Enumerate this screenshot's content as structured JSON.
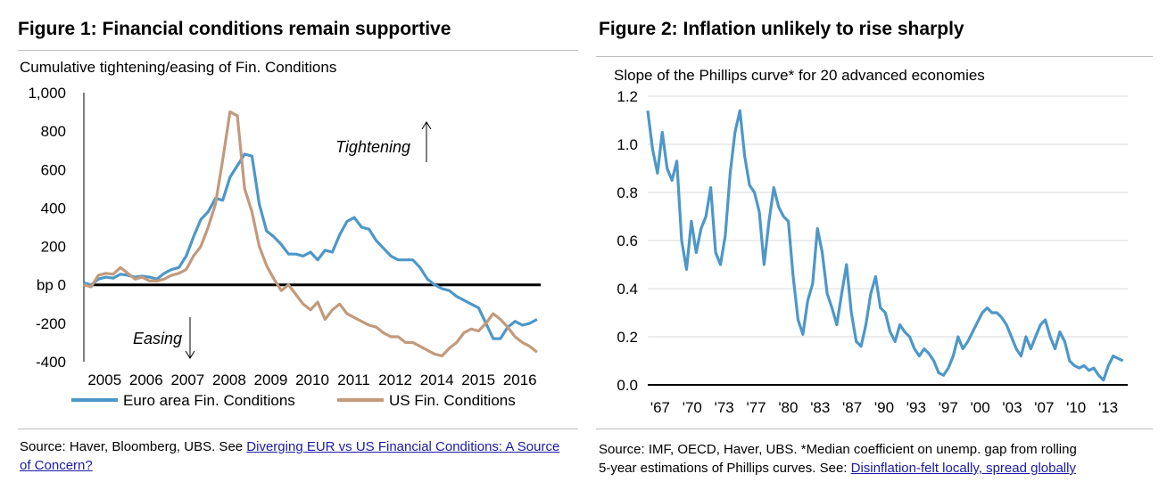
{
  "figure1": {
    "title": "Figure 1: Financial conditions remain supportive",
    "source_prefix": "Source:  Haver, Bloomberg, UBS. See ",
    "source_link": "Diverging EUR vs US Financial Conditions: A Source of Concern?",
    "chart_data": {
      "type": "line",
      "title": "Figure 1: Financial conditions remain supportive",
      "subtitle": "Cumulative tightening/easing of Fin. Conditions",
      "xlabel": "",
      "ylabel": "bp",
      "ylim": [
        -400,
        1000
      ],
      "xlim": [
        2005,
        2017.5
      ],
      "y_ticks": [
        1000,
        800,
        600,
        400,
        200,
        0,
        -200,
        -400
      ],
      "y_tick_labels": [
        "1,000",
        "800",
        "600",
        "400",
        "200",
        "bp 0",
        "-200",
        "-400"
      ],
      "x_tick_labels": [
        "2005",
        "2006",
        "2007",
        "2008",
        "2009",
        "2010",
        "2011",
        "2012",
        "2014",
        "2015",
        "2016"
      ],
      "grid": false,
      "legend_position": "bottom",
      "annotations": [
        {
          "text": "Tightening",
          "arrow": "up"
        },
        {
          "text": "Easing",
          "arrow": "down"
        }
      ],
      "colors": {
        "Euro area Fin. Conditions": "#4d97c9",
        "US Fin. Conditions": "#c29a7c",
        "zero_line": "#000000"
      },
      "series": [
        {
          "name": "Euro area Fin. Conditions",
          "x": [
            2005.0,
            2005.2,
            2005.4,
            2005.6,
            2005.8,
            2006.0,
            2006.2,
            2006.4,
            2006.6,
            2006.8,
            2007.0,
            2007.2,
            2007.4,
            2007.6,
            2007.8,
            2008.0,
            2008.2,
            2008.4,
            2008.6,
            2008.8,
            2009.0,
            2009.2,
            2009.4,
            2009.6,
            2009.8,
            2010.0,
            2010.2,
            2010.4,
            2010.6,
            2010.8,
            2011.0,
            2011.2,
            2011.4,
            2011.6,
            2011.8,
            2012.0,
            2012.2,
            2012.4,
            2012.6,
            2012.8,
            2013.0,
            2013.2,
            2013.4,
            2013.6,
            2013.8,
            2014.0,
            2014.2,
            2014.4,
            2014.6,
            2014.8,
            2015.0,
            2015.2,
            2015.4,
            2015.6,
            2015.8,
            2016.0,
            2016.2,
            2016.4,
            2016.6,
            2016.8,
            2017.0,
            2017.2,
            2017.4
          ],
          "values": [
            10,
            0,
            30,
            40,
            35,
            55,
            50,
            40,
            45,
            40,
            30,
            60,
            80,
            90,
            150,
            250,
            340,
            380,
            450,
            440,
            560,
            620,
            680,
            670,
            420,
            280,
            250,
            210,
            160,
            160,
            150,
            170,
            130,
            180,
            170,
            260,
            330,
            350,
            300,
            290,
            230,
            190,
            150,
            130,
            130,
            130,
            90,
            30,
            0,
            -20,
            -30,
            -60,
            -80,
            -100,
            -120,
            -200,
            -280,
            -280,
            -220,
            -190,
            -210,
            -200,
            -180
          ]
        },
        {
          "name": "US Fin. Conditions",
          "x": [
            2005.0,
            2005.2,
            2005.4,
            2005.6,
            2005.8,
            2006.0,
            2006.2,
            2006.4,
            2006.6,
            2006.8,
            2007.0,
            2007.2,
            2007.4,
            2007.6,
            2007.8,
            2008.0,
            2008.2,
            2008.4,
            2008.6,
            2008.8,
            2009.0,
            2009.2,
            2009.4,
            2009.6,
            2009.8,
            2010.0,
            2010.2,
            2010.4,
            2010.6,
            2010.8,
            2011.0,
            2011.2,
            2011.4,
            2011.6,
            2011.8,
            2012.0,
            2012.2,
            2012.4,
            2012.6,
            2012.8,
            2013.0,
            2013.2,
            2013.4,
            2013.6,
            2013.8,
            2014.0,
            2014.2,
            2014.4,
            2014.6,
            2014.8,
            2015.0,
            2015.2,
            2015.4,
            2015.6,
            2015.8,
            2016.0,
            2016.2,
            2016.4,
            2016.6,
            2016.8,
            2017.0,
            2017.2,
            2017.4
          ],
          "values": [
            0,
            -10,
            50,
            60,
            55,
            90,
            60,
            30,
            40,
            20,
            20,
            30,
            50,
            60,
            80,
            150,
            200,
            300,
            420,
            650,
            900,
            880,
            500,
            380,
            200,
            100,
            30,
            -30,
            0,
            -50,
            -100,
            -130,
            -90,
            -180,
            -130,
            -100,
            -150,
            -170,
            -190,
            -210,
            -220,
            -250,
            -270,
            -270,
            -300,
            -300,
            -320,
            -340,
            -360,
            -370,
            -330,
            -300,
            -250,
            -230,
            -240,
            -200,
            -150,
            -180,
            -220,
            -270,
            -300,
            -320,
            -350
          ]
        }
      ]
    }
  },
  "figure2": {
    "title": "Figure 2: Inflation unlikely to rise sharply",
    "source_line1": "Source:  IMF, OECD, Haver, UBS. *Median coefficient on unemp. gap from rolling",
    "source_line2_prefix": "5-year estimations of Phillips curves. See: ",
    "source_link": "Disinflation-felt locally, spread globally",
    "chart_data": {
      "type": "line",
      "title": "Figure 2: Inflation unlikely to rise sharply",
      "subtitle": "Slope of the Phillips curve* for 20 advanced economies",
      "xlabel": "",
      "ylabel": "",
      "ylim": [
        0.0,
        1.2
      ],
      "xlim": [
        1967,
        2016.5
      ],
      "y_ticks": [
        0.0,
        0.2,
        0.4,
        0.6,
        0.8,
        1.0,
        1.2
      ],
      "y_tick_labels": [
        "0.0",
        "0.2",
        "0.4",
        "0.6",
        "0.8",
        "1.0",
        "1.2"
      ],
      "x_tick_labels": [
        "'67",
        "'70",
        "'73",
        "'77",
        "'80",
        "'83",
        "'87",
        "'90",
        "'93",
        "'97",
        "'00",
        "'03",
        "'07",
        "'10",
        "'13"
      ],
      "grid": true,
      "colors": {
        "line": "#4d97c9",
        "grid": "#d9d9d9"
      },
      "series": [
        {
          "name": "",
          "x": [
            1967.0,
            1967.5,
            1968.0,
            1968.5,
            1969.0,
            1969.5,
            1970.0,
            1970.5,
            1971.0,
            1971.5,
            1972.0,
            1972.5,
            1973.0,
            1973.5,
            1974.0,
            1974.5,
            1975.0,
            1975.5,
            1976.0,
            1976.5,
            1977.0,
            1977.5,
            1978.0,
            1978.5,
            1979.0,
            1979.5,
            1980.0,
            1980.5,
            1981.0,
            1981.5,
            1982.0,
            1982.5,
            1983.0,
            1983.5,
            1984.0,
            1984.5,
            1985.0,
            1985.5,
            1986.0,
            1986.5,
            1987.0,
            1987.5,
            1988.0,
            1988.5,
            1989.0,
            1989.5,
            1990.0,
            1990.5,
            1991.0,
            1991.5,
            1992.0,
            1992.5,
            1993.0,
            1993.5,
            1994.0,
            1994.5,
            1995.0,
            1995.5,
            1996.0,
            1996.5,
            1997.0,
            1997.5,
            1998.0,
            1998.5,
            1999.0,
            1999.5,
            2000.0,
            2000.5,
            2001.0,
            2001.5,
            2002.0,
            2002.5,
            2003.0,
            2003.5,
            2004.0,
            2004.5,
            2005.0,
            2005.5,
            2006.0,
            2006.5,
            2007.0,
            2007.5,
            2008.0,
            2008.5,
            2009.0,
            2009.5,
            2010.0,
            2010.5,
            2011.0,
            2011.5,
            2012.0,
            2012.5,
            2013.0,
            2013.5,
            2014.0,
            2014.5,
            2015.0,
            2015.5,
            2016.0
          ],
          "values": [
            1.14,
            0.98,
            0.88,
            1.05,
            0.9,
            0.85,
            0.93,
            0.6,
            0.48,
            0.68,
            0.55,
            0.65,
            0.7,
            0.82,
            0.55,
            0.5,
            0.62,
            0.88,
            1.05,
            1.14,
            0.95,
            0.83,
            0.8,
            0.72,
            0.5,
            0.68,
            0.82,
            0.74,
            0.7,
            0.68,
            0.45,
            0.27,
            0.21,
            0.35,
            0.42,
            0.65,
            0.55,
            0.38,
            0.32,
            0.25,
            0.38,
            0.5,
            0.3,
            0.18,
            0.16,
            0.25,
            0.38,
            0.45,
            0.32,
            0.3,
            0.22,
            0.18,
            0.25,
            0.22,
            0.2,
            0.15,
            0.12,
            0.15,
            0.13,
            0.1,
            0.05,
            0.04,
            0.07,
            0.12,
            0.2,
            0.15,
            0.18,
            0.22,
            0.26,
            0.3,
            0.32,
            0.3,
            0.3,
            0.28,
            0.25,
            0.2,
            0.15,
            0.12,
            0.2,
            0.15,
            0.2,
            0.25,
            0.27,
            0.2,
            0.15,
            0.22,
            0.18,
            0.1,
            0.08,
            0.07,
            0.08,
            0.06,
            0.07,
            0.04,
            0.02,
            0.08,
            0.12,
            0.11,
            0.1
          ]
        }
      ]
    }
  }
}
